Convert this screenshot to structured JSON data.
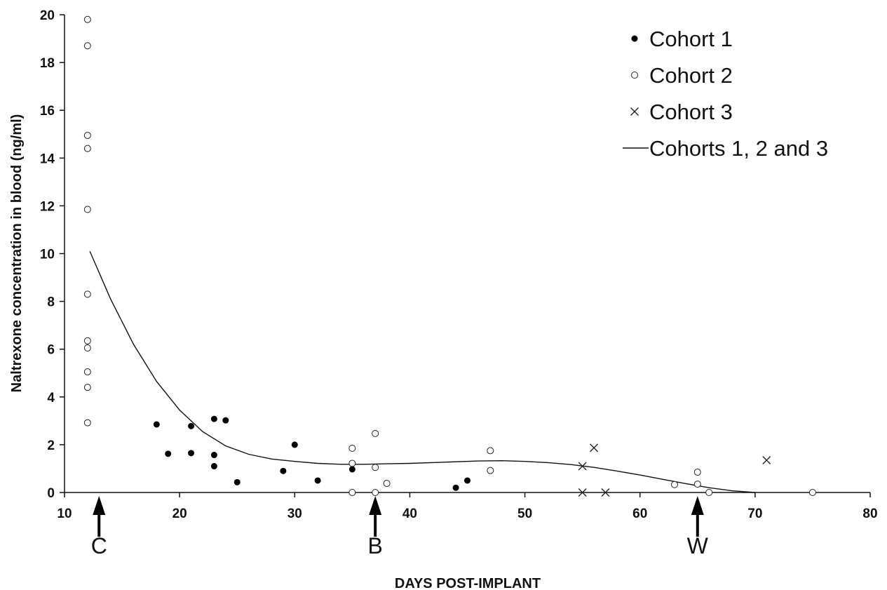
{
  "chart_data": {
    "type": "scatter",
    "xlabel": "DAYS POST-IMPLANT",
    "ylabel": "Naltrexone concentration in blood (ng/ml)",
    "xlim": [
      10,
      80
    ],
    "ylim": [
      0,
      20
    ],
    "xticks": [
      10,
      20,
      30,
      40,
      50,
      60,
      70,
      80
    ],
    "yticks": [
      0,
      2,
      4,
      6,
      8,
      10,
      12,
      14,
      16,
      18,
      20
    ],
    "grid": false,
    "legend_position": "top-right",
    "series": [
      {
        "name": "Cohort 1",
        "marker": "filled-circle",
        "points": [
          {
            "x": 18,
            "y": 2.85
          },
          {
            "x": 19,
            "y": 1.62
          },
          {
            "x": 21,
            "y": 2.78
          },
          {
            "x": 21,
            "y": 1.65
          },
          {
            "x": 23,
            "y": 3.08
          },
          {
            "x": 23,
            "y": 1.57
          },
          {
            "x": 23,
            "y": 1.1
          },
          {
            "x": 24,
            "y": 3.02
          },
          {
            "x": 25,
            "y": 0.43
          },
          {
            "x": 29,
            "y": 0.9
          },
          {
            "x": 30,
            "y": 2.0
          },
          {
            "x": 32,
            "y": 0.5
          },
          {
            "x": 35,
            "y": 0.97
          },
          {
            "x": 44,
            "y": 0.2
          },
          {
            "x": 45,
            "y": 0.5
          }
        ]
      },
      {
        "name": "Cohort 2",
        "marker": "open-circle",
        "points": [
          {
            "x": 12,
            "y": 19.8
          },
          {
            "x": 12,
            "y": 18.7
          },
          {
            "x": 12,
            "y": 14.95
          },
          {
            "x": 12,
            "y": 14.4
          },
          {
            "x": 12,
            "y": 11.85
          },
          {
            "x": 12,
            "y": 8.3
          },
          {
            "x": 12,
            "y": 6.35
          },
          {
            "x": 12,
            "y": 6.05
          },
          {
            "x": 12,
            "y": 5.05
          },
          {
            "x": 12,
            "y": 4.4
          },
          {
            "x": 12,
            "y": 2.92
          },
          {
            "x": 35,
            "y": 1.85
          },
          {
            "x": 35,
            "y": 1.22
          },
          {
            "x": 35,
            "y": 0
          },
          {
            "x": 37,
            "y": 2.47
          },
          {
            "x": 37,
            "y": 1.05
          },
          {
            "x": 37,
            "y": 0
          },
          {
            "x": 38,
            "y": 0.38
          },
          {
            "x": 47,
            "y": 1.75
          },
          {
            "x": 47,
            "y": 0.92
          },
          {
            "x": 63,
            "y": 0.33
          },
          {
            "x": 65,
            "y": 0.85
          },
          {
            "x": 65,
            "y": 0.35
          },
          {
            "x": 66,
            "y": 0
          },
          {
            "x": 75,
            "y": 0
          }
        ]
      },
      {
        "name": "Cohort 3",
        "marker": "cross",
        "points": [
          {
            "x": 55,
            "y": 1.1
          },
          {
            "x": 55,
            "y": 0
          },
          {
            "x": 56,
            "y": 1.87
          },
          {
            "x": 57,
            "y": 0
          },
          {
            "x": 71,
            "y": 1.35
          }
        ]
      },
      {
        "name": "Cohorts 1, 2 and 3",
        "marker": "line",
        "points": [
          {
            "x": 12.2,
            "y": 10.1
          },
          {
            "x": 14,
            "y": 8.1
          },
          {
            "x": 16,
            "y": 6.2
          },
          {
            "x": 18,
            "y": 4.65
          },
          {
            "x": 20,
            "y": 3.45
          },
          {
            "x": 22,
            "y": 2.55
          },
          {
            "x": 24,
            "y": 1.95
          },
          {
            "x": 26,
            "y": 1.6
          },
          {
            "x": 28,
            "y": 1.4
          },
          {
            "x": 30,
            "y": 1.3
          },
          {
            "x": 32,
            "y": 1.22
          },
          {
            "x": 34,
            "y": 1.18
          },
          {
            "x": 36,
            "y": 1.18
          },
          {
            "x": 38,
            "y": 1.2
          },
          {
            "x": 40,
            "y": 1.22
          },
          {
            "x": 43,
            "y": 1.27
          },
          {
            "x": 46,
            "y": 1.32
          },
          {
            "x": 48,
            "y": 1.33
          },
          {
            "x": 50,
            "y": 1.3
          },
          {
            "x": 52,
            "y": 1.25
          },
          {
            "x": 54,
            "y": 1.17
          },
          {
            "x": 56,
            "y": 1.05
          },
          {
            "x": 58,
            "y": 0.9
          },
          {
            "x": 60,
            "y": 0.73
          },
          {
            "x": 62,
            "y": 0.55
          },
          {
            "x": 64,
            "y": 0.37
          },
          {
            "x": 66,
            "y": 0.2
          },
          {
            "x": 68,
            "y": 0.07
          },
          {
            "x": 70,
            "y": 0
          }
        ]
      }
    ],
    "annotations": [
      {
        "label": "C",
        "x": 13
      },
      {
        "label": "B",
        "x": 37
      },
      {
        "label": "W",
        "x": 65
      }
    ]
  }
}
